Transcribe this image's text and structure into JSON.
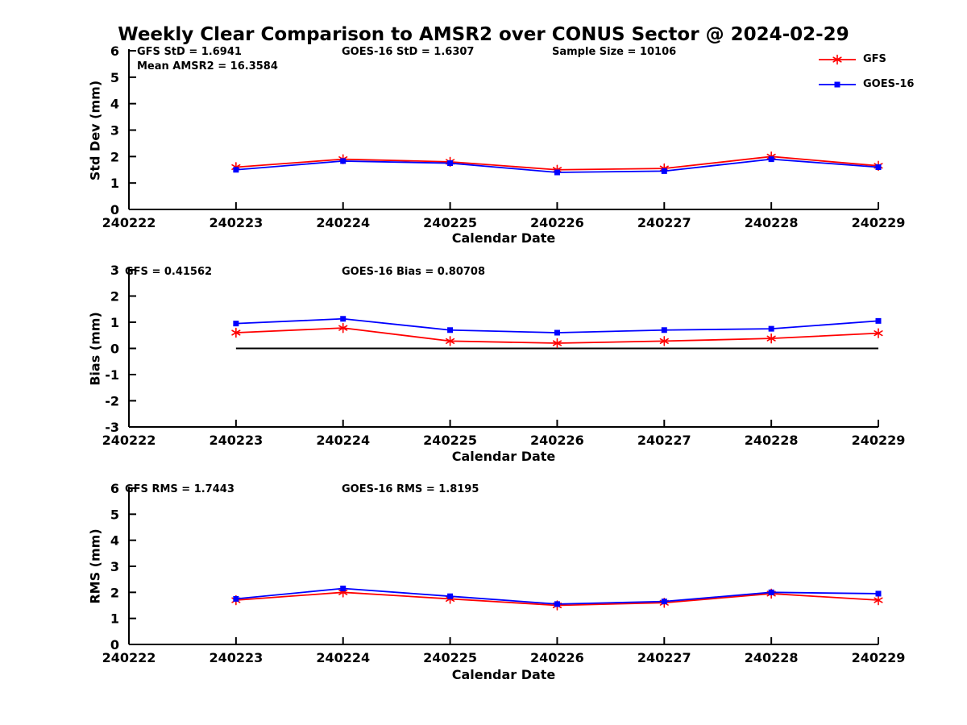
{
  "title": "Weekly Clear Comparison to AMSR2 over CONUS Sector @ 2024-02-29",
  "legend": {
    "items": [
      {
        "label": "GFS",
        "color": "#ff0000",
        "marker": "asterisk"
      },
      {
        "label": "GOES-16",
        "color": "#0000ff",
        "marker": "square"
      }
    ]
  },
  "chart_data": [
    {
      "type": "line",
      "title": "",
      "ylabel": "Std Dev (mm)",
      "xlabel": "Calendar Date",
      "ylim": [
        0,
        6
      ],
      "yticks": [
        0,
        1,
        2,
        3,
        4,
        5,
        6
      ],
      "x_tick_labels": [
        "240222",
        "240223",
        "240224",
        "240225",
        "240226",
        "240227",
        "240228",
        "240229"
      ],
      "grid": false,
      "legend_position": "top-right",
      "annotations": {
        "gfs_std": "GFS StD = 1.6941",
        "mean_amsr2": "Mean AMSR2 = 16.3584",
        "goes_std": "GOES-16 StD = 1.6307",
        "sample_size": "Sample Size = 10106"
      },
      "series": [
        {
          "name": "GFS",
          "color": "#ff0000",
          "marker": "asterisk",
          "x": [
            "240223",
            "240224",
            "240225",
            "240226",
            "240227",
            "240228",
            "240229"
          ],
          "values": [
            1.6,
            1.9,
            1.8,
            1.5,
            1.55,
            2.0,
            1.65
          ]
        },
        {
          "name": "GOES-16",
          "color": "#0000ff",
          "marker": "square",
          "x": [
            "240223",
            "240224",
            "240225",
            "240226",
            "240227",
            "240228",
            "240229"
          ],
          "values": [
            1.5,
            1.83,
            1.75,
            1.4,
            1.45,
            1.9,
            1.6
          ]
        }
      ]
    },
    {
      "type": "line",
      "title": "",
      "ylabel": "Bias (mm)",
      "xlabel": "Calendar Date",
      "ylim": [
        -3,
        3
      ],
      "yticks": [
        -3,
        -2,
        -1,
        0,
        1,
        2,
        3
      ],
      "x_tick_labels": [
        "240222",
        "240223",
        "240224",
        "240225",
        "240226",
        "240227",
        "240228",
        "240229"
      ],
      "grid": false,
      "zero_line": true,
      "annotations": {
        "gfs_bias": "GFS = 0.41562",
        "goes_bias": "GOES-16 Bias = 0.80708"
      },
      "series": [
        {
          "name": "GFS",
          "color": "#ff0000",
          "marker": "asterisk",
          "x": [
            "240223",
            "240224",
            "240225",
            "240226",
            "240227",
            "240228",
            "240229"
          ],
          "values": [
            0.6,
            0.78,
            0.28,
            0.2,
            0.28,
            0.38,
            0.58
          ]
        },
        {
          "name": "GOES-16",
          "color": "#0000ff",
          "marker": "square",
          "x": [
            "240223",
            "240224",
            "240225",
            "240226",
            "240227",
            "240228",
            "240229"
          ],
          "values": [
            0.95,
            1.13,
            0.7,
            0.6,
            0.7,
            0.75,
            1.05
          ]
        }
      ]
    },
    {
      "type": "line",
      "title": "",
      "ylabel": "RMS (mm)",
      "xlabel": "Calendar Date",
      "ylim": [
        0,
        6
      ],
      "yticks": [
        0,
        1,
        2,
        3,
        4,
        5,
        6
      ],
      "x_tick_labels": [
        "240222",
        "240223",
        "240224",
        "240225",
        "240226",
        "240227",
        "240228",
        "240229"
      ],
      "grid": false,
      "annotations": {
        "gfs_rms": "GFS RMS = 1.7443",
        "goes_rms": "GOES-16 RMS = 1.8195"
      },
      "series": [
        {
          "name": "GFS",
          "color": "#ff0000",
          "marker": "asterisk",
          "x": [
            "240223",
            "240224",
            "240225",
            "240226",
            "240227",
            "240228",
            "240229"
          ],
          "values": [
            1.7,
            2.0,
            1.75,
            1.5,
            1.6,
            1.95,
            1.7
          ]
        },
        {
          "name": "GOES-16",
          "color": "#0000ff",
          "marker": "square",
          "x": [
            "240223",
            "240224",
            "240225",
            "240226",
            "240227",
            "240228",
            "240229"
          ],
          "values": [
            1.75,
            2.15,
            1.85,
            1.55,
            1.65,
            2.0,
            1.95
          ]
        }
      ]
    }
  ]
}
